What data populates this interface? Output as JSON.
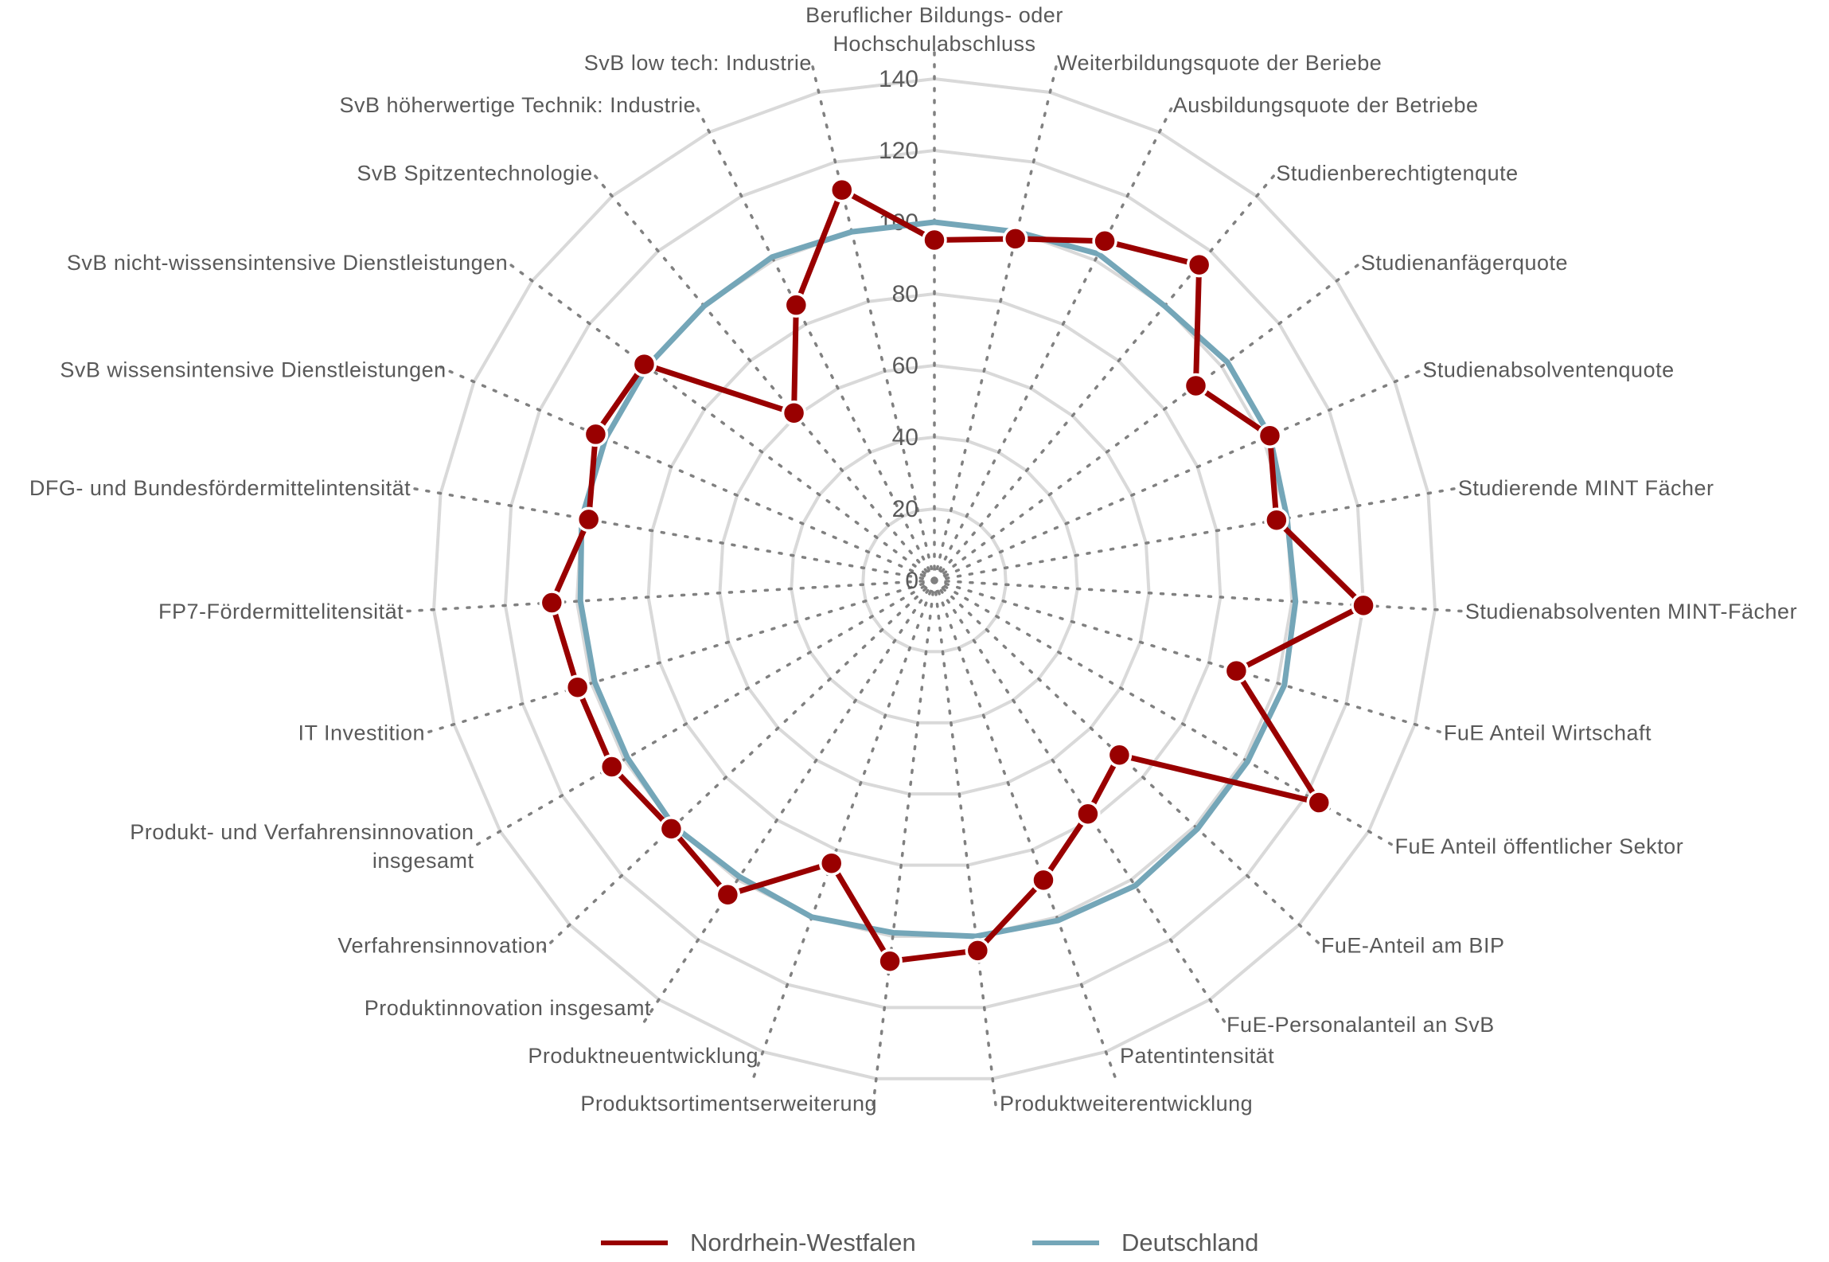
{
  "chart_data": {
    "type": "radar",
    "rlim": [
      0,
      140
    ],
    "ticks": [
      "0",
      "20",
      "40",
      "60",
      "80",
      "100",
      "120",
      "140"
    ],
    "tick_values": [
      0,
      20,
      40,
      60,
      80,
      100,
      120,
      140
    ],
    "axes": [
      "Beruflicher Bildungs- oder\nHochschulabschluss",
      "Weiterbildungsquote  der Beriebe",
      "Ausbildungsquote  der Betriebe",
      "Studienberechtigtenqute",
      "Studienanfägerquote",
      "Studienabsolventenquote",
      "Studierende MINT Fächer",
      "Studienabsolventen  MINT-Fächer",
      "FuE Anteil  Wirtschaft",
      "FuE Anteil  öffentlicher Sektor",
      "FuE-Anteil  am BIP",
      "FuE-Personalanteil  an SvB",
      "Patentintensität",
      "Produktweiterentwicklung",
      "Produktsortimentserweiterung",
      "Produktneuentwicklung",
      "Produktinnovation  insgesamt",
      "Verfahrensinnovation",
      "Produkt-  und Verfahrensinnovation\ninsgesamt",
      "IT Investition",
      "FP7-Fördermittelitensität",
      "DFG-  und Bundesfördermittelintensität",
      "SvB  wissensintensive  Dienstleistungen",
      "SvB  nicht-wissensintensive  Dienstleistungen",
      "SvB  Spitzentechnologie",
      "SvB  höherwertige  Technik:  Industrie",
      "SvB  low tech:  Industrie"
    ],
    "series": [
      {
        "name": "Nordrhein-Westfalen",
        "color": "#990000",
        "values": [
          95,
          98,
          106,
          115,
          91,
          102,
          97,
          120,
          88,
          124,
          71,
          78,
          89,
          104,
          107,
          84,
          105,
          101,
          104,
          104,
          107,
          98,
          103,
          101,
          61,
          86,
          112
        ]
      },
      {
        "name": "Deutschland",
        "color": "#74a6b8",
        "values": [
          100,
          100,
          102,
          100,
          102,
          102,
          100,
          101,
          102,
          101,
          101,
          102,
          101,
          100,
          99,
          100,
          99,
          100,
          99,
          99,
          99,
          100,
          100,
          100,
          100,
          101,
          100
        ]
      }
    ],
    "legend_position": "bottom",
    "grid": true
  }
}
